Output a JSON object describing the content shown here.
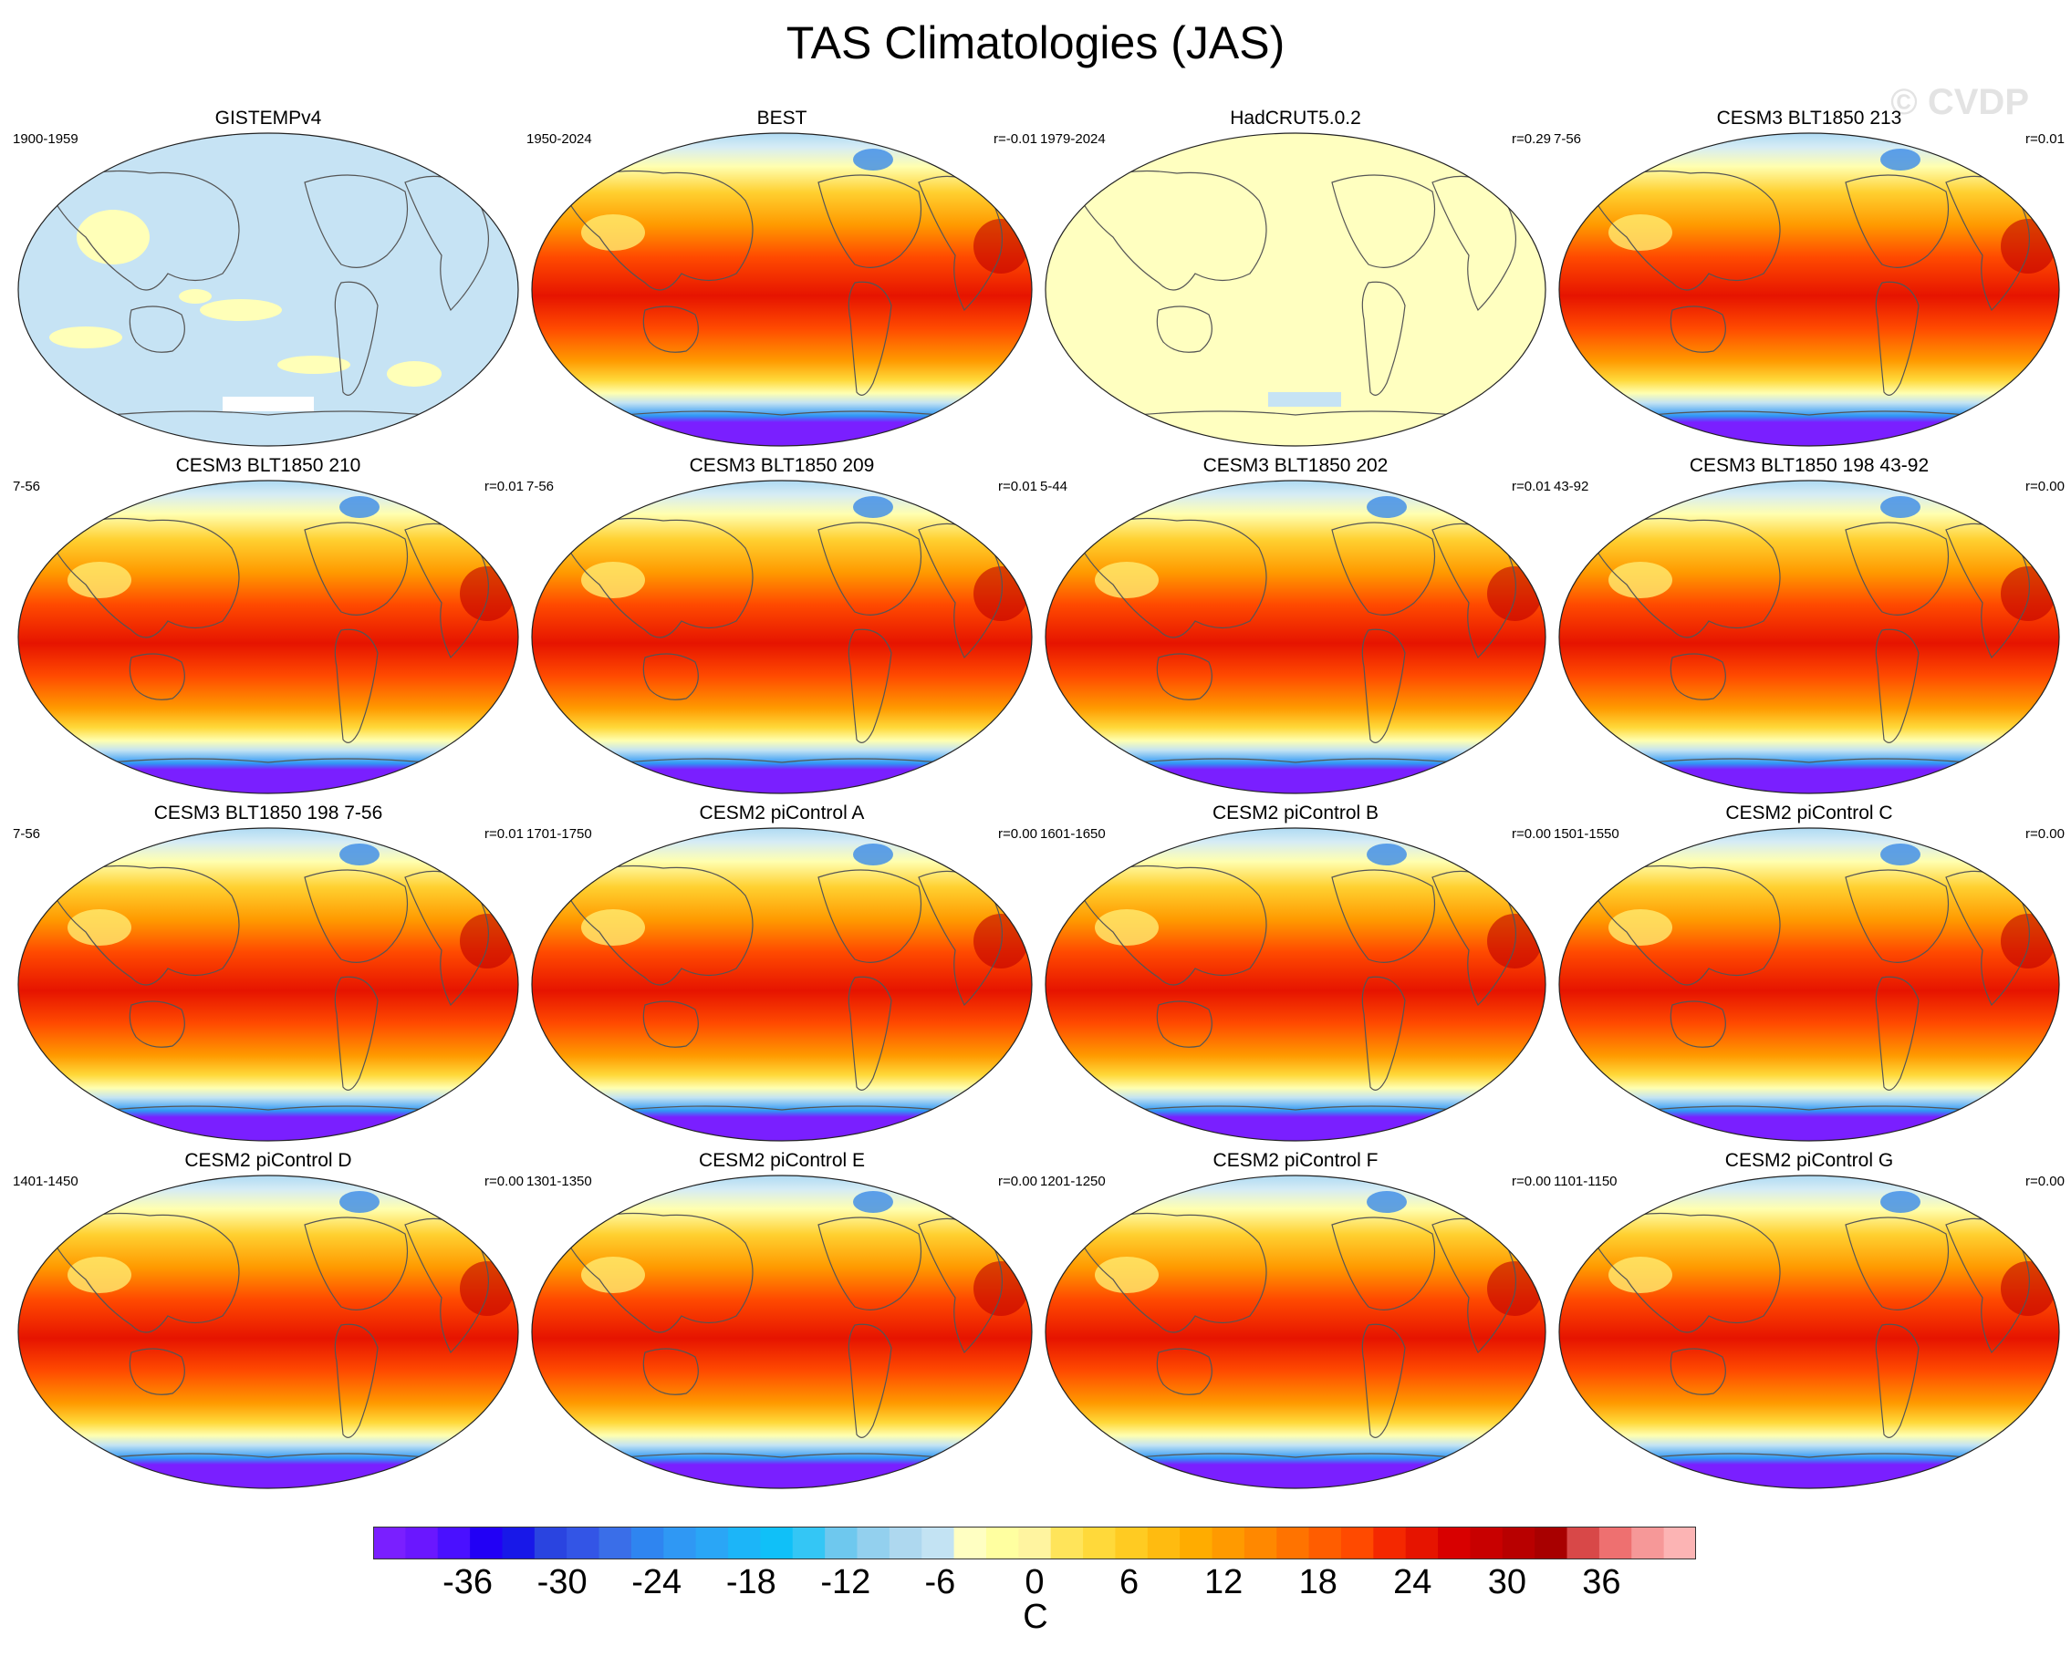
{
  "title": "TAS Climatologies (JAS)",
  "watermark": "© CVDP",
  "panels": [
    {
      "title": "GISTEMPv4",
      "years": "1900-1959",
      "r": "",
      "style": "obs_mask"
    },
    {
      "title": "BEST",
      "years": "1950-2024",
      "r": "r=-0.01",
      "style": "full"
    },
    {
      "title": "HadCRUT5.0.2",
      "years": "1979-2024",
      "r": "r=0.29",
      "style": "obs_flat"
    },
    {
      "title": "CESM3 BLT1850 213",
      "years": "7-56",
      "r": "r=0.01",
      "style": "full"
    },
    {
      "title": "CESM3 BLT1850 210",
      "years": "7-56",
      "r": "r=0.01",
      "style": "full"
    },
    {
      "title": "CESM3 BLT1850 209",
      "years": "7-56",
      "r": "r=0.01",
      "style": "full"
    },
    {
      "title": "CESM3 BLT1850 202",
      "years": "5-44",
      "r": "r=0.01",
      "style": "full"
    },
    {
      "title": "CESM3 BLT1850 198 43-92",
      "years": "43-92",
      "r": "r=0.00",
      "style": "full"
    },
    {
      "title": "CESM3 BLT1850 198 7-56",
      "years": "7-56",
      "r": "r=0.01",
      "style": "full"
    },
    {
      "title": "CESM2 piControl A",
      "years": "1701-1750",
      "r": "r=0.00",
      "style": "full"
    },
    {
      "title": "CESM2 piControl B",
      "years": "1601-1650",
      "r": "r=0.00",
      "style": "full"
    },
    {
      "title": "CESM2 piControl C",
      "years": "1501-1550",
      "r": "r=0.00",
      "style": "full"
    },
    {
      "title": "CESM2 piControl D",
      "years": "1401-1450",
      "r": "r=0.00",
      "style": "full"
    },
    {
      "title": "CESM2 piControl E",
      "years": "1301-1350",
      "r": "r=0.00",
      "style": "full"
    },
    {
      "title": "CESM2 piControl F",
      "years": "1201-1250",
      "r": "r=0.00",
      "style": "full"
    },
    {
      "title": "CESM2 piControl G",
      "years": "1101-1150",
      "r": "r=0.00",
      "style": "full"
    }
  ],
  "colorbar": {
    "unit": "C",
    "tick_labels": [
      "-36",
      "-30",
      "-24",
      "-18",
      "-12",
      "-6",
      "0",
      "6",
      "12",
      "18",
      "24",
      "30",
      "36"
    ],
    "tick_values": [
      -36,
      -30,
      -24,
      -18,
      -12,
      -6,
      0,
      6,
      12,
      18,
      24,
      30,
      36
    ],
    "min": -42,
    "max": 42,
    "colors": [
      "#7a1fff",
      "#6a17ff",
      "#4a10ff",
      "#2200f5",
      "#1818e8",
      "#2a44e0",
      "#3355e6",
      "#3a6ee8",
      "#2f85f0",
      "#2f98f4",
      "#2aa6f6",
      "#1cb5f8",
      "#10c0f8",
      "#34c6f5",
      "#6ec8ee",
      "#93d0ee",
      "#aed8ef",
      "#c3e3f3",
      "#ffffc2",
      "#ffffa0",
      "#fff4a0",
      "#ffe45a",
      "#ffd93a",
      "#ffcb22",
      "#ffbb10",
      "#ffac00",
      "#ff9a00",
      "#ff8800",
      "#ff7300",
      "#ff5d00",
      "#ff4a00",
      "#f42800",
      "#e61400",
      "#d80000",
      "#c80000",
      "#b80000",
      "#a80000",
      "#d84848",
      "#ee7070",
      "#f69898",
      "#fcb4b4"
    ]
  }
}
